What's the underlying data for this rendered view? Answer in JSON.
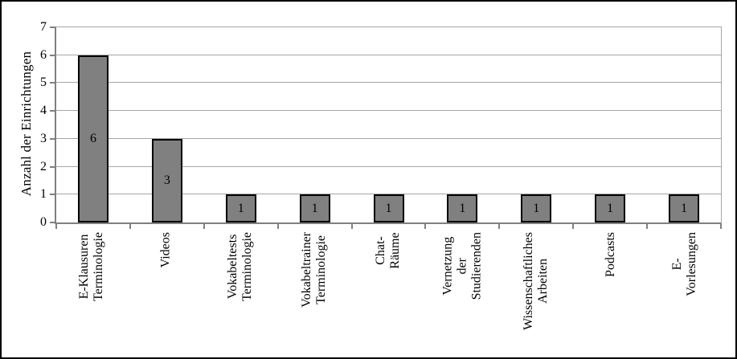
{
  "figure": {
    "background": "#ffffff",
    "frame_color": "#000000"
  },
  "chart_data": {
    "type": "bar",
    "title": "",
    "xlabel": "",
    "ylabel": "Anzahl der Einrichtungen",
    "ylim": [
      0,
      7
    ],
    "yticks": [
      0,
      1,
      2,
      3,
      4,
      5,
      6,
      7
    ],
    "grid": true,
    "legend": false,
    "categories": [
      "E-Klausuren\nTerminologie",
      "Videos",
      "Vokabeltests\nTerminologie",
      "Vokabeltrainer\nTerminologie",
      "Chat-Räume",
      "Vernetzung der\nStudierenden",
      "Wissenschaftliches\nArbeiten",
      "Podcasts",
      "E-Vorlesungen"
    ],
    "values": [
      6,
      3,
      1,
      1,
      1,
      1,
      1,
      1,
      1
    ],
    "bar_labels": [
      "6",
      "3",
      "1",
      "1",
      "1",
      "1",
      "1",
      "1",
      "1"
    ],
    "colors": {
      "bar_fill": "#808080",
      "bar_border": "#000000",
      "axis": "#808080",
      "gridline": "#a6a6a6",
      "text": "#000000"
    }
  }
}
